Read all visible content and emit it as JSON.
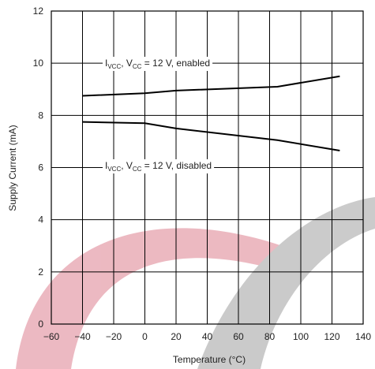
{
  "chart_data": {
    "type": "line",
    "x_label": "Temperature (°C)",
    "y_label": "Supply Current (mA)",
    "xlim": [
      -60,
      140
    ],
    "ylim": [
      0,
      12
    ],
    "xticks": [
      {
        "value": -60,
        "label": "−60"
      },
      {
        "value": -40,
        "label": "−40"
      },
      {
        "value": -20,
        "label": "−20"
      },
      0,
      20,
      40,
      60,
      80,
      100,
      120,
      140
    ],
    "yticks": [
      0,
      2,
      4,
      6,
      8,
      10,
      12
    ],
    "grid": true,
    "series": [
      {
        "color": "#000000",
        "x": [
          -40,
          0,
          20,
          85,
          125
        ],
        "y": [
          8.75,
          8.85,
          8.95,
          9.1,
          9.5
        ]
      },
      {
        "color": "#000000",
        "x": [
          -40,
          0,
          20,
          85,
          125
        ],
        "y": [
          7.75,
          7.7,
          7.5,
          7.05,
          6.65
        ]
      }
    ],
    "annotations": [
      {
        "parts": [
          "I",
          "VCC",
          ", V",
          "CC",
          " = 12 V, enabled"
        ]
      },
      {
        "parts": [
          "I",
          "VCC",
          ", V",
          "CC",
          " = 12 V, disabled"
        ]
      }
    ]
  }
}
